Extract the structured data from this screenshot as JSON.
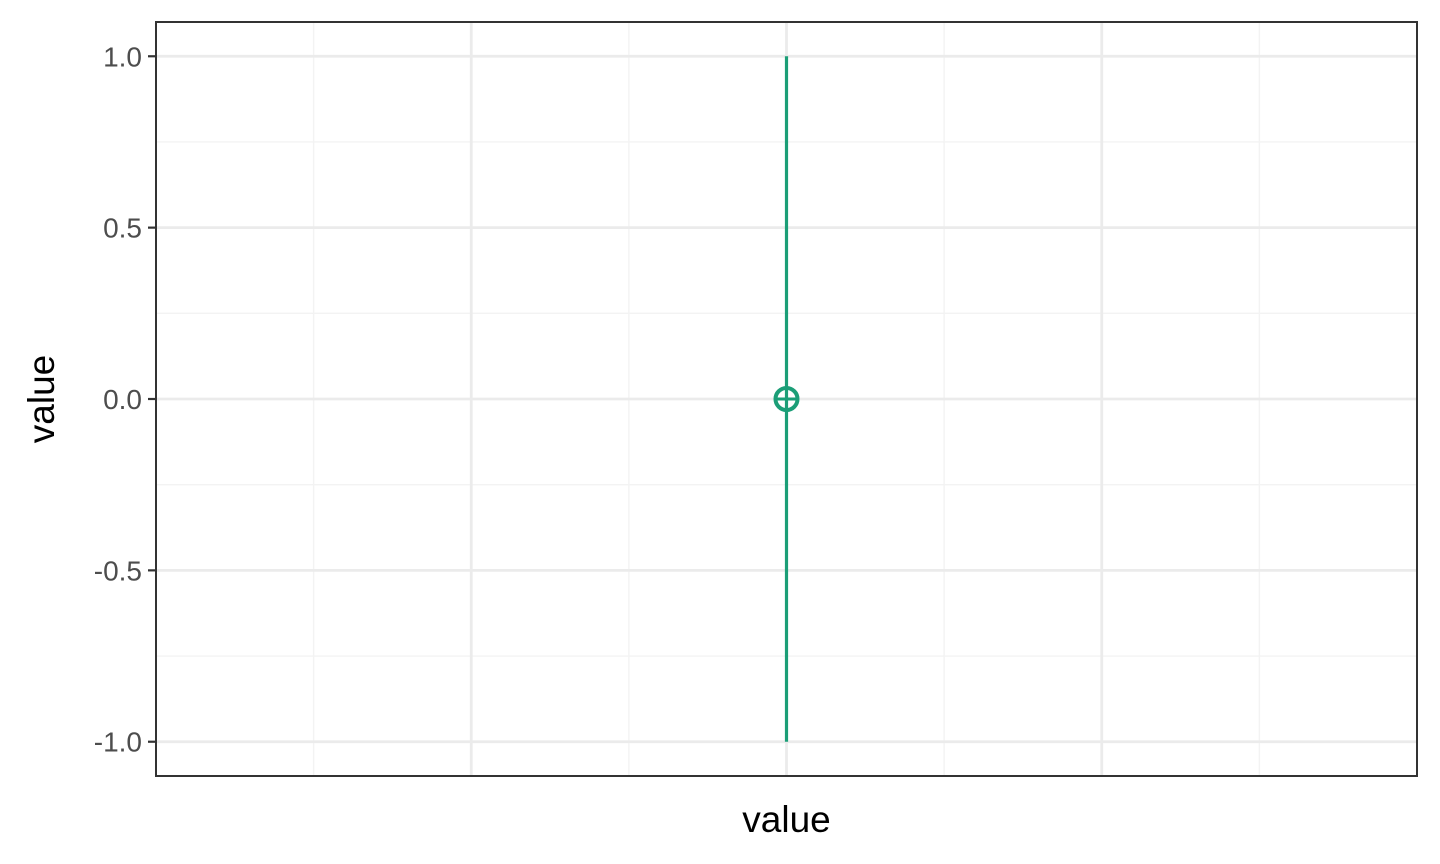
{
  "chart_data": {
    "type": "pointrange",
    "title": "",
    "xlabel": "value",
    "ylabel": "value",
    "ylim": [
      -1.1,
      1.1
    ],
    "yticks": [
      1.0,
      0.5,
      0.0,
      -0.5,
      -1.0
    ],
    "ytick_labels": [
      "1.0",
      "0.5",
      "0.0",
      "-0.5",
      "-1.0"
    ],
    "grid": true,
    "series": [
      {
        "points": [
          {
            "x": 0,
            "y": 0.0,
            "ymin": -1.0,
            "ymax": 1.0
          }
        ],
        "color": "#1b9e77",
        "marker": "circle-plus"
      }
    ]
  },
  "colors": {
    "background": "#ffffff",
    "panel_border": "#333333",
    "grid_major": "#ebebeb",
    "grid_minor": "#f3f3f3",
    "tick_text": "#4d4d4d",
    "tick_mark": "#333333"
  }
}
